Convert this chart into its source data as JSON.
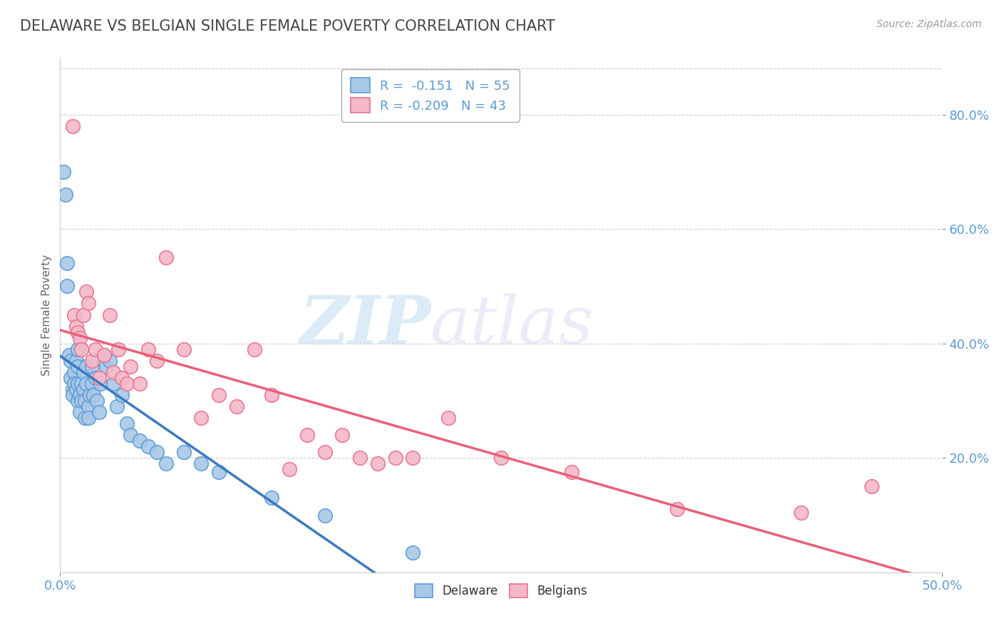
{
  "title": "DELAWARE VS BELGIAN SINGLE FEMALE POVERTY CORRELATION CHART",
  "source_text": "Source: ZipAtlas.com",
  "ylabel": "Single Female Poverty",
  "xlim": [
    0.0,
    0.5
  ],
  "ylim": [
    0.0,
    0.9
  ],
  "xtick_positions": [
    0.0,
    0.5
  ],
  "ytick_positions": [
    0.2,
    0.4,
    0.6,
    0.8
  ],
  "watermark_zip": "ZIP",
  "watermark_atlas": "atlas",
  "delaware_color": "#a8c8e8",
  "belgian_color": "#f4b8c8",
  "delaware_edge": "#5b9bd5",
  "belgian_edge": "#e87090",
  "regression_delaware": "#3a7abf",
  "regression_belgian": "#e8607a",
  "background_color": "#ffffff",
  "grid_color": "#cccccc",
  "tick_color": "#5b9bd5",
  "title_color": "#444444",
  "ylabel_color": "#666666",
  "legend_label_color": "#5b9bd5",
  "delaware_x": [
    0.002,
    0.003,
    0.004,
    0.004,
    0.005,
    0.006,
    0.006,
    0.007,
    0.007,
    0.008,
    0.008,
    0.009,
    0.009,
    0.01,
    0.01,
    0.01,
    0.01,
    0.011,
    0.011,
    0.012,
    0.012,
    0.013,
    0.013,
    0.014,
    0.014,
    0.015,
    0.015,
    0.016,
    0.016,
    0.017,
    0.018,
    0.018,
    0.019,
    0.02,
    0.021,
    0.022,
    0.023,
    0.025,
    0.026,
    0.028,
    0.03,
    0.032,
    0.035,
    0.038,
    0.04,
    0.045,
    0.05,
    0.055,
    0.06,
    0.07,
    0.08,
    0.09,
    0.12,
    0.15,
    0.2
  ],
  "delaware_y": [
    0.7,
    0.66,
    0.54,
    0.5,
    0.38,
    0.34,
    0.37,
    0.32,
    0.31,
    0.35,
    0.33,
    0.37,
    0.32,
    0.39,
    0.36,
    0.33,
    0.3,
    0.31,
    0.28,
    0.33,
    0.3,
    0.35,
    0.32,
    0.3,
    0.27,
    0.36,
    0.33,
    0.29,
    0.27,
    0.31,
    0.36,
    0.33,
    0.31,
    0.34,
    0.3,
    0.28,
    0.33,
    0.38,
    0.36,
    0.37,
    0.33,
    0.29,
    0.31,
    0.26,
    0.24,
    0.23,
    0.22,
    0.21,
    0.19,
    0.21,
    0.19,
    0.175,
    0.13,
    0.1,
    0.035
  ],
  "belgian_x": [
    0.007,
    0.008,
    0.009,
    0.01,
    0.011,
    0.012,
    0.013,
    0.015,
    0.016,
    0.018,
    0.02,
    0.022,
    0.025,
    0.028,
    0.03,
    0.033,
    0.035,
    0.038,
    0.04,
    0.045,
    0.05,
    0.055,
    0.06,
    0.07,
    0.08,
    0.09,
    0.1,
    0.11,
    0.12,
    0.13,
    0.14,
    0.15,
    0.16,
    0.17,
    0.18,
    0.19,
    0.2,
    0.22,
    0.25,
    0.29,
    0.35,
    0.42,
    0.46
  ],
  "belgian_y": [
    0.78,
    0.45,
    0.43,
    0.42,
    0.41,
    0.39,
    0.45,
    0.49,
    0.47,
    0.37,
    0.39,
    0.34,
    0.38,
    0.45,
    0.35,
    0.39,
    0.34,
    0.33,
    0.36,
    0.33,
    0.39,
    0.37,
    0.55,
    0.39,
    0.27,
    0.31,
    0.29,
    0.39,
    0.31,
    0.18,
    0.24,
    0.21,
    0.24,
    0.2,
    0.19,
    0.2,
    0.2,
    0.27,
    0.2,
    0.175,
    0.11,
    0.105,
    0.15
  ]
}
